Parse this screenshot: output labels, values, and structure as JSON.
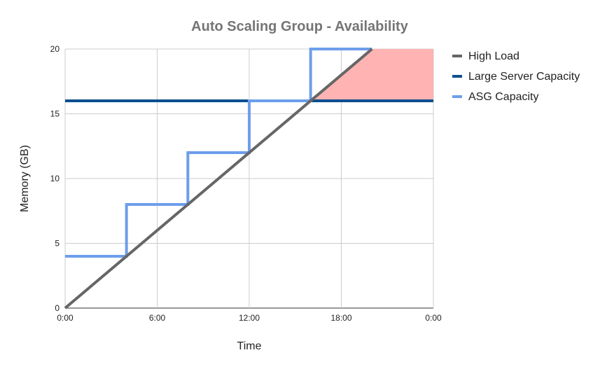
{
  "chart_data": {
    "type": "line",
    "title": "Auto Scaling Group - Availability",
    "xlabel": "Time",
    "ylabel": "Memory (GB)",
    "x_ticks": [
      "0:00",
      "6:00",
      "12:00",
      "18:00",
      "0:00"
    ],
    "x_tick_hours": [
      0,
      6,
      12,
      18,
      24
    ],
    "xlim_hours": [
      0,
      24
    ],
    "y_ticks": [
      "0",
      "5",
      "10",
      "15",
      "20"
    ],
    "y_tick_values": [
      0,
      5,
      10,
      15,
      20
    ],
    "ylim": [
      0,
      20
    ],
    "grid": true,
    "legend_position": "right",
    "shaded_region": {
      "description": "area above Large Server Capacity where load exceeds it",
      "color": "#ffb3b3",
      "x_hours": [
        16,
        24
      ],
      "y_from": 16,
      "y_to": 20
    },
    "series": [
      {
        "name": "High Load",
        "color": "#666666",
        "points": [
          [
            0,
            0
          ],
          [
            20,
            20
          ]
        ]
      },
      {
        "name": "Large Server Capacity",
        "color": "#0b4f8f",
        "points": [
          [
            0,
            16
          ],
          [
            24,
            16
          ]
        ]
      },
      {
        "name": "ASG Capacity",
        "color": "#6d9eeb",
        "points": [
          [
            0,
            4
          ],
          [
            4,
            4
          ],
          [
            4,
            8
          ],
          [
            8,
            8
          ],
          [
            8,
            12
          ],
          [
            12,
            12
          ],
          [
            12,
            16
          ],
          [
            16,
            16
          ],
          [
            16,
            20
          ],
          [
            20,
            20
          ]
        ]
      }
    ]
  }
}
